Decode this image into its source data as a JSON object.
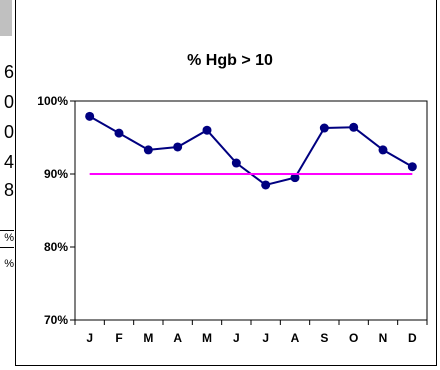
{
  "background_sheet": {
    "cells": [
      "6",
      "0",
      "0",
      "4",
      "8"
    ],
    "pct_marks": [
      "%",
      "%"
    ]
  },
  "chart_data": {
    "type": "line",
    "title": "% Hgb > 10",
    "xlabel": "",
    "ylabel": "",
    "categories": [
      "J",
      "F",
      "M",
      "A",
      "M",
      "J",
      "J",
      "A",
      "S",
      "O",
      "N",
      "D"
    ],
    "series": [
      {
        "values": [
          97.9,
          95.6,
          93.3,
          93.7,
          96.0,
          91.5,
          88.5,
          89.5,
          96.3,
          96.4,
          93.3,
          91.0
        ],
        "color": "#000080"
      },
      {
        "values": [
          90,
          90,
          90,
          90,
          90,
          90,
          90,
          90,
          90,
          90,
          90,
          90
        ],
        "color": "#ff00ff"
      }
    ],
    "ylim": [
      70,
      100
    ],
    "yticks": [
      "70%",
      "80%",
      "90%",
      "100%"
    ],
    "grid": false,
    "legend": "none"
  }
}
